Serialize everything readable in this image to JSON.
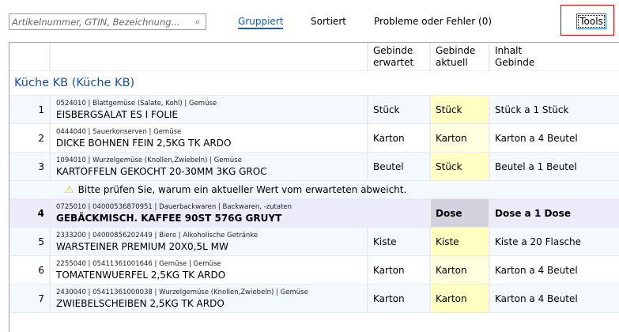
{
  "search": {
    "placeholder": "Artikelnummer, GTIN, Bezeichnung...",
    "icon": "search-icon"
  },
  "tabs": [
    {
      "label": "Gruppiert",
      "active": true
    },
    {
      "label": "Sortiert"
    },
    {
      "label": "Probleme oder Fehler (0)"
    }
  ],
  "tools_label": "Tools",
  "columns": {
    "expected_1": "Gebinde",
    "expected_2": "erwartet",
    "actual_1": "Gebinde",
    "actual_2": "aktuell",
    "content_1": "Inhalt",
    "content_2": "Gebinde"
  },
  "group_title": "Küche KB (Küche KB)",
  "warning": {
    "icon": "warning-icon",
    "text": "Bitte prüfen Sie, warum ein aktueller Wert vom erwarteten abweicht."
  },
  "rows": [
    {
      "num": "1",
      "meta": "0524010 | Blattgemüse (Salate, Kohl) | Gemüse",
      "name": "EISBERGSALAT ES I FOLIE",
      "expected": "Stück",
      "actual": "Stück",
      "content": "Stück a 1 Stück"
    },
    {
      "num": "2",
      "meta": "0444040 | Sauerkonserven | Gemüse",
      "name": "DICKE BOHNEN FEIN 2,5KG TK ARDO",
      "expected": "Karton",
      "actual": "Karton",
      "content": "Karton a 4 Beutel"
    },
    {
      "num": "3",
      "meta": "1094010 | Wurzelgemüse (Knollen,Zwiebeln) | Gemüse",
      "name": "KARTOFFELN GEKOCHT 20-30MM 3KG GROC",
      "expected": "Beutel",
      "actual": "Stück",
      "content": "Beutel a 1 Beutel"
    },
    {
      "num": "4",
      "meta": "0725010 | 04000536870951 | Dauerbackwaren | Backwaren, -zutaten",
      "name": "GEBÄCKMISCH. KAFFEE 90ST 576G GRUYT",
      "expected": "",
      "actual": "Dose",
      "content": "Dose a 1 Dose",
      "selected": true
    },
    {
      "num": "5",
      "meta": "2333200 | 04000856202449 | Biere | Alkoholische Getränke",
      "name": "WARSTEINER PREMIUM 20X0,5L MW",
      "expected": "Kiste",
      "actual": "Kiste",
      "content": "Kiste a 20 Flasche"
    },
    {
      "num": "6",
      "meta": "2255040 | 05411361001646 | Gemüse | Gemüse",
      "name": "TOMATENWUERFEL 2,5KG TK ARDO",
      "expected": "Karton",
      "actual": "Karton",
      "content": "Karton a 4 Beutel"
    },
    {
      "num": "7",
      "meta": "2430040 | 05411361000038 | Wurzelgemüse (Knollen,Zwiebeln) | Gemüse",
      "name": "ZWIEBELSCHEIBEN 2,5KG TK ARDO",
      "expected": "Karton",
      "actual": "Karton",
      "content": "Karton a 4 Beutel"
    }
  ]
}
